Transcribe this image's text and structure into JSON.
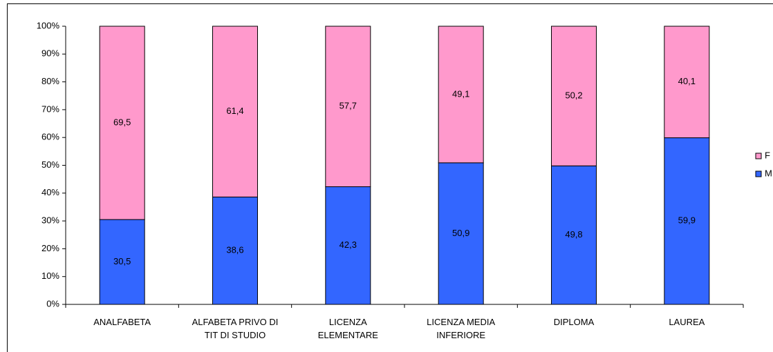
{
  "chart_data": {
    "type": "stacked_bar_percent",
    "categories": [
      "ANALFABETA",
      "ALFABETA PRIVO DI TIT DI STUDIO",
      "LICENZA ELEMENTARE",
      "LICENZA MEDIA INFERIORE",
      "DIPLOMA",
      "LAUREA"
    ],
    "series": [
      {
        "name": "M",
        "color": "#3366ff",
        "values": [
          30.5,
          38.6,
          42.3,
          50.9,
          49.8,
          59.9
        ],
        "value_labels": [
          "30,5",
          "38,6",
          "42,3",
          "50,9",
          "49,8",
          "59,9"
        ]
      },
      {
        "name": "F",
        "color": "#ff99cc",
        "values": [
          69.5,
          61.4,
          57.7,
          49.1,
          50.2,
          40.1
        ],
        "value_labels": [
          "69,5",
          "61,4",
          "57,7",
          "49,1",
          "50,2",
          "40,1"
        ]
      }
    ],
    "ylim": [
      0,
      100
    ],
    "yticks": [
      {
        "value": 0,
        "label": "0%"
      },
      {
        "value": 10,
        "label": "10%"
      },
      {
        "value": 20,
        "label": "20%"
      },
      {
        "value": 30,
        "label": "30%"
      },
      {
        "value": 40,
        "label": "40%"
      },
      {
        "value": 50,
        "label": "50%"
      },
      {
        "value": 60,
        "label": "60%"
      },
      {
        "value": 70,
        "label": "70%"
      },
      {
        "value": 80,
        "label": "80%"
      },
      {
        "value": 90,
        "label": "90%"
      },
      {
        "value": 100,
        "label": "100%"
      }
    ],
    "legend": "right"
  }
}
